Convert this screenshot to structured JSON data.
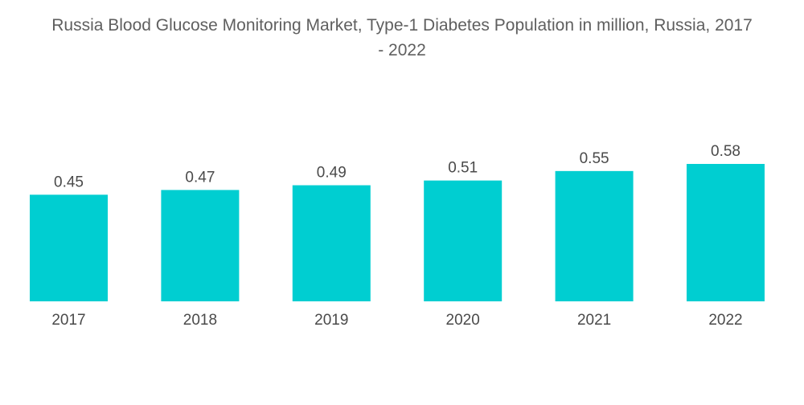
{
  "chart_data": {
    "type": "bar",
    "title": "Russia Blood Glucose Monitoring Market, Type-1 Diabetes Population in million, Russia, 2017 - 2022",
    "title_lines": [
      "Russia Blood Glucose Monitoring Market, Type-1 Diabetes Population in million, Russia, 2017",
      "- 2022"
    ],
    "categories": [
      "2017",
      "2018",
      "2019",
      "2020",
      "2021",
      "2022"
    ],
    "values": [
      0.45,
      0.47,
      0.49,
      0.51,
      0.55,
      0.58
    ],
    "value_labels": [
      "0.45",
      "0.47",
      "0.49",
      "0.51",
      "0.55",
      "0.58"
    ],
    "xlabel": "",
    "ylabel": "",
    "ylim": [
      0,
      0.58
    ],
    "grid": false,
    "legend": "none",
    "bar_color": "#00ced1"
  }
}
